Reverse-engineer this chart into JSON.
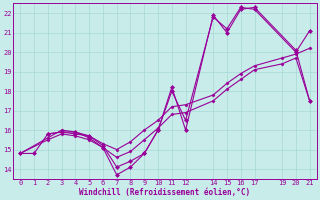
{
  "xlabel": "Windchill (Refroidissement éolien,°C)",
  "background_color": "#c8ecea",
  "grid_color": "#a8d8d4",
  "line_color": "#990099",
  "xlim": [
    -0.5,
    21.5
  ],
  "ylim": [
    13.5,
    22.5
  ],
  "xticks": [
    0,
    1,
    2,
    3,
    4,
    5,
    6,
    7,
    8,
    9,
    10,
    11,
    12,
    14,
    15,
    16,
    17,
    19,
    20,
    21
  ],
  "yticks": [
    14,
    15,
    16,
    17,
    18,
    19,
    20,
    21,
    22
  ],
  "lines": [
    {
      "x": [
        0,
        1,
        2,
        3,
        4,
        5,
        6,
        7,
        8,
        9,
        10,
        11,
        12,
        14,
        15,
        16,
        17,
        20,
        21
      ],
      "y": [
        14.8,
        14.8,
        15.8,
        15.9,
        15.8,
        15.7,
        15.2,
        14.1,
        14.4,
        14.8,
        16.0,
        18.0,
        16.5,
        21.8,
        21.2,
        22.3,
        22.2,
        20.0,
        21.1
      ],
      "style": "solid",
      "marker": true
    },
    {
      "x": [
        2,
        3,
        4,
        5,
        6,
        7,
        8,
        9,
        10,
        11,
        12,
        14,
        15,
        16,
        17,
        20,
        21
      ],
      "y": [
        15.8,
        15.9,
        15.9,
        15.6,
        15.1,
        13.7,
        14.1,
        14.8,
        16.0,
        18.2,
        16.0,
        21.9,
        21.0,
        22.2,
        22.3,
        20.1,
        17.5
      ],
      "style": "solid",
      "marker": true
    },
    {
      "x": [
        0,
        2,
        3,
        4,
        5,
        6,
        7,
        8,
        9,
        10,
        11,
        12,
        14,
        15,
        16,
        17,
        19,
        20,
        21
      ],
      "y": [
        14.8,
        15.6,
        16.0,
        15.9,
        15.7,
        15.3,
        15.0,
        15.4,
        16.0,
        16.5,
        17.2,
        17.3,
        17.8,
        18.4,
        18.9,
        19.3,
        19.7,
        19.9,
        20.2
      ],
      "style": "solid",
      "marker": false
    },
    {
      "x": [
        0,
        2,
        3,
        4,
        5,
        6,
        7,
        8,
        9,
        10,
        11,
        12,
        14,
        15,
        16,
        17,
        19,
        20,
        21
      ],
      "y": [
        14.8,
        15.5,
        15.8,
        15.7,
        15.5,
        15.1,
        14.6,
        14.9,
        15.5,
        16.1,
        16.8,
        16.9,
        17.5,
        18.1,
        18.6,
        19.1,
        19.4,
        19.7,
        17.5
      ],
      "style": "solid",
      "marker": false
    }
  ]
}
